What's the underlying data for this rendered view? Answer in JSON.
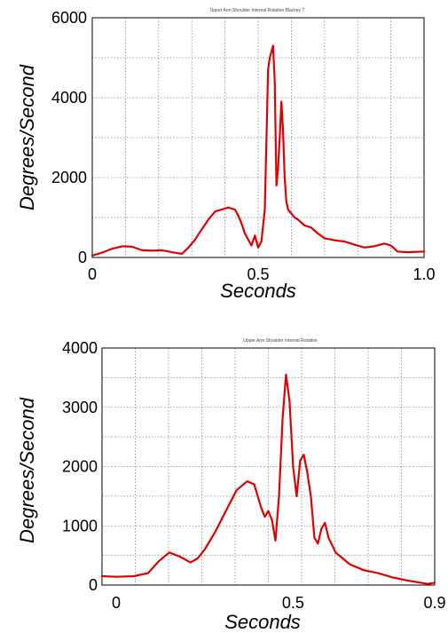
{
  "chart_data": [
    {
      "type": "line",
      "title": "Upper Arm Shoulder Internal Rotation Blackey 7",
      "xlabel": "Seconds",
      "ylabel": "Degrees/Second",
      "xlim": [
        0,
        1.0
      ],
      "ylim": [
        0,
        6000
      ],
      "xticks": [
        "0",
        "0.5",
        "1.0"
      ],
      "yticks": [
        "0",
        "2000",
        "4000",
        "6000"
      ],
      "grid": true,
      "series": [
        {
          "color": "#e00000",
          "x": [
            0,
            0.03,
            0.06,
            0.09,
            0.12,
            0.15,
            0.18,
            0.21,
            0.24,
            0.27,
            0.29,
            0.31,
            0.33,
            0.35,
            0.37,
            0.39,
            0.41,
            0.43,
            0.44,
            0.45,
            0.46,
            0.47,
            0.48,
            0.49,
            0.5,
            0.51,
            0.52,
            0.53,
            0.535,
            0.545,
            0.55,
            0.555,
            0.56,
            0.565,
            0.57,
            0.575,
            0.58,
            0.585,
            0.59,
            0.6,
            0.61,
            0.62,
            0.64,
            0.66,
            0.68,
            0.7,
            0.73,
            0.76,
            0.79,
            0.82,
            0.85,
            0.88,
            0.9,
            0.92,
            0.95,
            0.98,
            1.0
          ],
          "y": [
            50,
            120,
            220,
            280,
            270,
            180,
            170,
            180,
            130,
            90,
            250,
            450,
            700,
            950,
            1150,
            1200,
            1250,
            1200,
            1050,
            850,
            600,
            450,
            300,
            550,
            250,
            400,
            1200,
            4700,
            5000,
            5300,
            4400,
            1800,
            2200,
            3000,
            3900,
            3200,
            2000,
            1400,
            1200,
            1100,
            1000,
            950,
            800,
            750,
            600,
            480,
            430,
            400,
            320,
            250,
            280,
            350,
            300,
            150,
            130,
            140,
            150
          ]
        }
      ]
    },
    {
      "type": "line",
      "title": "Upper Arm Shoulder Internal Rotation",
      "xlabel": "Seconds",
      "ylabel": "Degrees/Second",
      "xlim": [
        -0.04,
        0.9
      ],
      "ylim": [
        0,
        4000
      ],
      "xticks": [
        "0",
        "0.5",
        "0.9"
      ],
      "yticks": [
        "0",
        "1000",
        "2000",
        "3000",
        "4000"
      ],
      "grid": true,
      "series": [
        {
          "color": "#e00000",
          "x": [
            -0.04,
            0.0,
            0.05,
            0.09,
            0.12,
            0.15,
            0.18,
            0.21,
            0.23,
            0.25,
            0.28,
            0.31,
            0.34,
            0.37,
            0.39,
            0.41,
            0.42,
            0.43,
            0.44,
            0.45,
            0.46,
            0.47,
            0.48,
            0.49,
            0.5,
            0.51,
            0.52,
            0.53,
            0.54,
            0.55,
            0.56,
            0.57,
            0.58,
            0.59,
            0.6,
            0.62,
            0.64,
            0.66,
            0.7,
            0.74,
            0.78,
            0.82,
            0.85,
            0.88,
            0.9
          ],
          "y": [
            150,
            140,
            150,
            200,
            400,
            550,
            480,
            380,
            450,
            600,
            900,
            1250,
            1600,
            1750,
            1700,
            1300,
            1150,
            1250,
            1100,
            750,
            1500,
            2800,
            3550,
            3100,
            2000,
            1500,
            2100,
            2200,
            1900,
            1500,
            800,
            700,
            950,
            1050,
            800,
            550,
            450,
            350,
            250,
            200,
            130,
            80,
            50,
            20,
            40
          ]
        }
      ]
    }
  ]
}
